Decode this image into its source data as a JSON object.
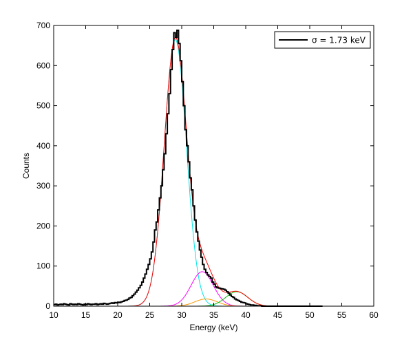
{
  "chart_data": {
    "type": "line",
    "title": "",
    "xlabel": "Energy (keV)",
    "ylabel": "Counts",
    "xlim": [
      10,
      60
    ],
    "ylim": [
      0,
      700
    ],
    "xticks": [
      10,
      15,
      20,
      25,
      30,
      35,
      40,
      45,
      50,
      55,
      60
    ],
    "yticks": [
      0,
      100,
      200,
      300,
      400,
      500,
      600,
      700
    ],
    "grid": false,
    "legend": {
      "placement": "top-right",
      "entries": [
        "σ = 1.73 keV"
      ]
    },
    "histogram": {
      "name": "σ = 1.73 keV",
      "style": "stairs",
      "color": "#000000",
      "bin_width": 0.25,
      "x_start": 10,
      "counts": [
        4,
        5,
        3,
        4,
        5,
        4,
        6,
        5,
        4,
        3,
        6,
        5,
        4,
        5,
        4,
        6,
        5,
        4,
        3,
        5,
        4,
        6,
        5,
        4,
        5,
        5,
        6,
        4,
        5,
        6,
        5,
        7,
        6,
        5,
        6,
        7,
        8,
        7,
        9,
        8,
        10,
        9,
        11,
        12,
        14,
        15,
        17,
        20,
        22,
        26,
        30,
        35,
        40,
        46,
        52,
        60,
        70,
        80,
        92,
        104,
        118,
        135,
        160,
        190,
        210,
        240,
        270,
        300,
        340,
        380,
        430,
        480,
        530,
        590,
        640,
        682,
        670,
        688,
        655,
        612,
        560,
        500,
        440,
        400,
        360,
        320,
        290,
        250,
        215,
        185,
        162,
        140,
        122,
        104,
        92,
        84,
        78,
        74,
        70,
        60,
        55,
        48,
        46,
        45,
        44,
        43,
        42,
        40,
        36,
        32,
        28,
        24,
        22,
        18,
        16,
        14,
        12,
        10,
        9,
        8,
        6,
        5,
        4,
        3,
        3,
        2,
        2,
        1,
        1,
        1,
        0,
        0,
        0,
        0,
        0,
        0,
        0,
        0,
        0,
        0,
        0,
        0,
        0,
        0,
        0,
        0,
        0,
        0,
        0,
        0,
        0,
        0,
        0,
        0,
        0,
        0,
        0,
        0,
        0,
        0,
        0,
        0,
        0,
        0,
        0,
        0,
        0,
        0
      ]
    },
    "components": [
      {
        "name": "",
        "color": "#00e5e5",
        "peak": 29.0,
        "amplitude": 665,
        "sigma": 1.73
      },
      {
        "name": "",
        "color": "#ff00ff",
        "peak": 33.2,
        "amplitude": 86,
        "sigma": 1.73
      },
      {
        "name": "",
        "color": "#ff9900",
        "peak": 33.8,
        "amplitude": 18,
        "sigma": 1.73
      },
      {
        "name": "",
        "color": "#00bb00",
        "peak": 38.6,
        "amplitude": 36,
        "sigma": 1.73
      }
    ],
    "sum_curve": {
      "name": "",
      "color": "#ff0000",
      "x_range": [
        21.5,
        53
      ]
    }
  }
}
